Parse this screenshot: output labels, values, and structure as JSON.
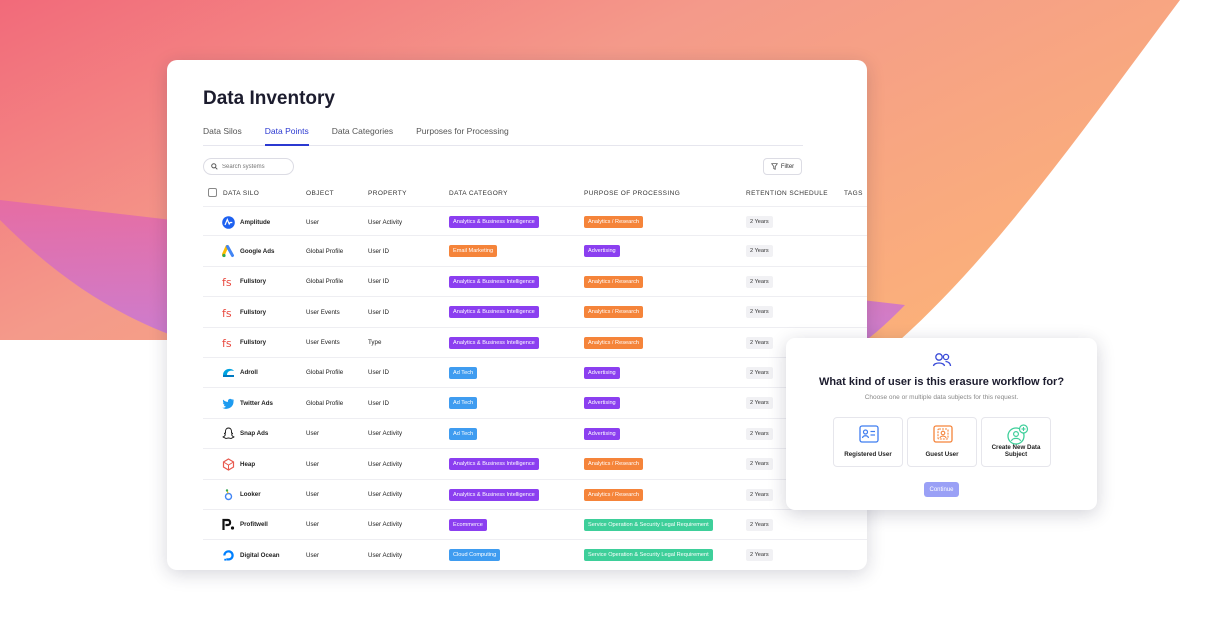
{
  "page": {
    "title": "Data Inventory",
    "tabs": [
      {
        "label": "Data Silos"
      },
      {
        "label": "Data Points"
      },
      {
        "label": "Data Categories"
      },
      {
        "label": "Purposes for Processing"
      }
    ],
    "active_tab": "Data Points",
    "search_placeholder": "Search systems",
    "filter_label": "Filter"
  },
  "table": {
    "headers": [
      "DATA SILO",
      "OBJECT",
      "PROPERTY",
      "DATA CATEGORY",
      "PURPOSE OF PROCESSING",
      "RETENTION SCHEDULE",
      "TAGS"
    ],
    "rows": [
      {
        "silo": "Amplitude",
        "logo": "amplitude-icon",
        "object": "User",
        "property": "User Activity",
        "category": "Analytics & Business Intelligence",
        "category_color": "#8b3ff0",
        "purpose": "Analytics / Research",
        "purpose_color": "#f5843a",
        "retention": "2 Years"
      },
      {
        "silo": "Google Ads",
        "logo": "google-ads-icon",
        "object": "Global Profile",
        "property": "User ID",
        "category": "Email Marketing",
        "category_color": "#f5843a",
        "purpose": "Advertising",
        "purpose_color": "#8b3ff0",
        "retention": "2 Years"
      },
      {
        "silo": "Fullstory",
        "logo": "fullstory-icon",
        "object": "Global Profile",
        "property": "User ID",
        "category": "Analytics & Business Intelligence",
        "category_color": "#8b3ff0",
        "purpose": "Analytics / Research",
        "purpose_color": "#f5843a",
        "retention": "2 Years"
      },
      {
        "silo": "Fullstory",
        "logo": "fullstory-icon",
        "object": "User Events",
        "property": "User ID",
        "category": "Analytics & Business Intelligence",
        "category_color": "#8b3ff0",
        "purpose": "Analytics / Research",
        "purpose_color": "#f5843a",
        "retention": "2 Years"
      },
      {
        "silo": "Fullstory",
        "logo": "fullstory-icon",
        "object": "User Events",
        "property": "Type",
        "category": "Analytics & Business Intelligence",
        "category_color": "#8b3ff0",
        "purpose": "Analytics / Research",
        "purpose_color": "#f5843a",
        "retention": "2 Years"
      },
      {
        "silo": "Adroll",
        "logo": "adroll-icon",
        "object": "Global Profile",
        "property": "User ID",
        "category": "Ad Tech",
        "category_color": "#3f9cf0",
        "purpose": "Advertising",
        "purpose_color": "#8b3ff0",
        "retention": "2 Years"
      },
      {
        "silo": "Twitter Ads",
        "logo": "twitter-icon",
        "object": "Global Profile",
        "property": "User ID",
        "category": "Ad Tech",
        "category_color": "#3f9cf0",
        "purpose": "Advertising",
        "purpose_color": "#8b3ff0",
        "retention": "2 Years"
      },
      {
        "silo": "Snap Ads",
        "logo": "snapchat-icon",
        "object": "User",
        "property": "User Activity",
        "category": "Ad Tech",
        "category_color": "#3f9cf0",
        "purpose": "Advertising",
        "purpose_color": "#8b3ff0",
        "retention": "2 Years"
      },
      {
        "silo": "Heap",
        "logo": "heap-icon",
        "object": "User",
        "property": "User Activity",
        "category": "Analytics & Business Intelligence",
        "category_color": "#8b3ff0",
        "purpose": "Analytics / Research",
        "purpose_color": "#f5843a",
        "retention": "2 Years"
      },
      {
        "silo": "Looker",
        "logo": "looker-icon",
        "object": "User",
        "property": "User Activity",
        "category": "Analytics & Business Intelligence",
        "category_color": "#8b3ff0",
        "purpose": "Analytics / Research",
        "purpose_color": "#f5843a",
        "retention": "2 Years"
      },
      {
        "silo": "Profitwell",
        "logo": "profitwell-icon",
        "object": "User",
        "property": "User Activity",
        "category": "Ecommerce",
        "category_color": "#8b3ff0",
        "purpose": "Service Operation & Security Legal Requirement",
        "purpose_color": "#3ecf9a",
        "retention": "2 Years"
      },
      {
        "silo": "Digital Ocean",
        "logo": "digitalocean-icon",
        "object": "User",
        "property": "User Activity",
        "category": "Cloud Computing",
        "category_color": "#3f9cf0",
        "purpose": "Service Operation & Security Legal Requirement",
        "purpose_color": "#3ecf9a",
        "retention": "2 Years"
      }
    ]
  },
  "modal": {
    "icon": "users-icon",
    "title": "What kind of user is this erasure workflow for?",
    "subtitle": "Choose one or multiple data subjects for this request.",
    "options": [
      {
        "label": "Registered User",
        "icon": "id-card-icon",
        "color": "#3f7df0"
      },
      {
        "label": "Guest User",
        "icon": "guest-card-icon",
        "color": "#f5843a"
      },
      {
        "label": "Create New Data Subject",
        "icon": "add-user-icon",
        "color": "#3ecf9a"
      }
    ],
    "continue_label": "Continue"
  }
}
